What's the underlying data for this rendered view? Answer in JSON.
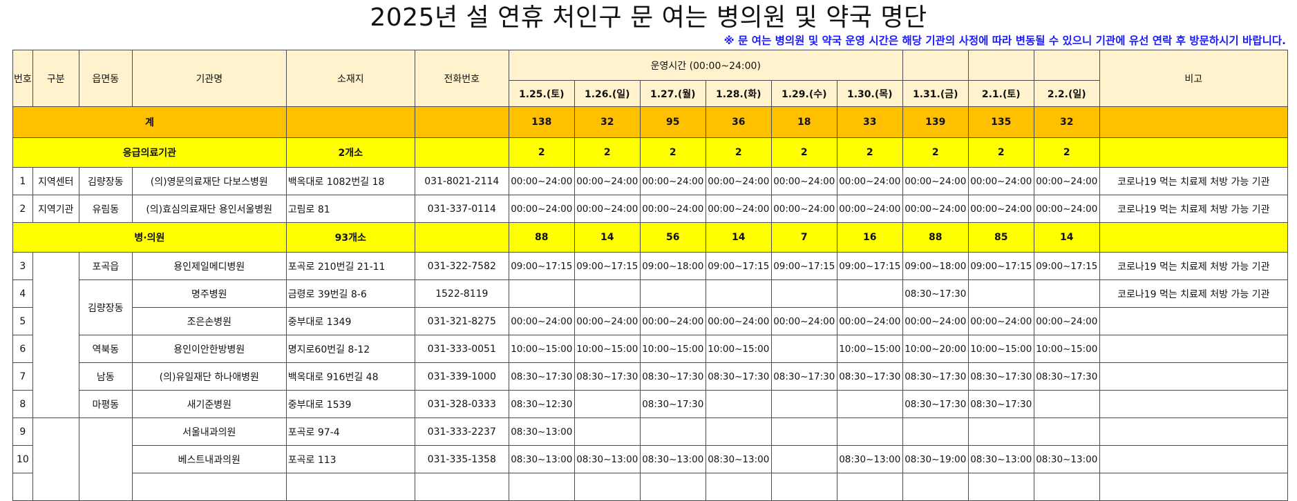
{
  "title": "2025년 설 연휴 처인구 문 여는 병의원 및 약국 명단",
  "notice": "※ 문 여는 병의원 및 약국 운영 시간은 해당 기관의 사정에 따라 변동될 수 있으니 기관에 유선 연락 후 방문하시기 바랍니다.",
  "header": {
    "no": "번호",
    "type": "구분",
    "district": "읍면동",
    "name": "기관명",
    "address": "소재지",
    "phone": "전화번호",
    "hours_group": "운영시간 (00:00~24:00)",
    "dates": [
      "1.25.(토)",
      "1.26.(일)",
      "1.27.(월)",
      "1.28.(화)",
      "1.29.(수)",
      "1.30.(목)",
      "1.31.(금)",
      "2.1.(토)",
      "2.2.(일)"
    ],
    "note": "비고"
  },
  "total": {
    "label": "계",
    "counts": [
      "138",
      "32",
      "95",
      "36",
      "18",
      "33",
      "139",
      "135",
      "32"
    ]
  },
  "emergency": {
    "label": "응급의료기관",
    "count": "2개소",
    "counts": [
      "2",
      "2",
      "2",
      "2",
      "2",
      "2",
      "2",
      "2",
      "2"
    ],
    "rows": [
      {
        "no": "1",
        "type": "지역센터",
        "district": "김량장동",
        "name": "(의)영문의료재단 다보스병원",
        "address": "백옥대로 1082번길 18",
        "phone": "031-8021-2114",
        "hours": [
          "00:00~24:00",
          "00:00~24:00",
          "00:00~24:00",
          "00:00~24:00",
          "00:00~24:00",
          "00:00~24:00",
          "00:00~24:00",
          "00:00~24:00",
          "00:00~24:00"
        ],
        "note": "코로나19 먹는 치료제 처방 가능 기관"
      },
      {
        "no": "2",
        "type": "지역기관",
        "district": "유림동",
        "name": "(의)효심의료재단 용인서울병원",
        "address": "고림로 81",
        "phone": "031-337-0114",
        "hours": [
          "00:00~24:00",
          "00:00~24:00",
          "00:00~24:00",
          "00:00~24:00",
          "00:00~24:00",
          "00:00~24:00",
          "00:00~24:00",
          "00:00~24:00",
          "00:00~24:00"
        ],
        "note": "코로나19 먹는 치료제 처방 가능 기관"
      }
    ]
  },
  "clinics": {
    "label": "병·의원",
    "count": "93개소",
    "counts": [
      "88",
      "14",
      "56",
      "14",
      "7",
      "16",
      "88",
      "85",
      "14"
    ],
    "districts": {
      "pogok": "포곡읍",
      "gimnyangjang": "김량장동",
      "yeokbuk": "역북동",
      "nam": "남동",
      "mapyeong": "마평동"
    },
    "rows": [
      {
        "no": "3",
        "name": "용인제일메디병원",
        "address": "포곡로 210번길 21-11",
        "phone": "031-322-7582",
        "hours": [
          "09:00~17:15",
          "09:00~17:15",
          "09:00~18:00",
          "09:00~17:15",
          "09:00~17:15",
          "09:00~17:15",
          "09:00~18:00",
          "09:00~17:15",
          "09:00~17:15"
        ],
        "note": "코로나19 먹는 치료제 처방 가능 기관"
      },
      {
        "no": "4",
        "name": "명주병원",
        "address": "금령로 39번길 8-6",
        "phone": "1522-8119",
        "hours": [
          "",
          "",
          "",
          "",
          "",
          "",
          "08:30~17:30",
          "",
          ""
        ],
        "note": "코로나19 먹는 치료제 처방 가능 기관"
      },
      {
        "no": "5",
        "name": "조은손병원",
        "address": "중부대로 1349",
        "phone": "031-321-8275",
        "hours": [
          "00:00~24:00",
          "00:00~24:00",
          "00:00~24:00",
          "00:00~24:00",
          "00:00~24:00",
          "00:00~24:00",
          "00:00~24:00",
          "00:00~24:00",
          "00:00~24:00"
        ],
        "note": ""
      },
      {
        "no": "6",
        "name": "용인이안한방병원",
        "address": "명지로60번길 8-12",
        "phone": "031-333-0051",
        "hours": [
          "10:00~15:00",
          "10:00~15:00",
          "10:00~15:00",
          "10:00~15:00",
          "",
          "10:00~15:00",
          "10:00~20:00",
          "10:00~15:00",
          "10:00~15:00"
        ],
        "note": ""
      },
      {
        "no": "7",
        "name": "(의)유일재단 하나애병원",
        "address": "백옥대로 916번길 48",
        "phone": "031-339-1000",
        "hours": [
          "08:30~17:30",
          "08:30~17:30",
          "08:30~17:30",
          "08:30~17:30",
          "08:30~17:30",
          "08:30~17:30",
          "08:30~17:30",
          "08:30~17:30",
          "08:30~17:30"
        ],
        "note": ""
      },
      {
        "no": "8",
        "name": "새기준병원",
        "address": "중부대로 1539",
        "phone": "031-328-0333",
        "hours": [
          "08:30~12:30",
          "",
          "08:30~17:30",
          "",
          "",
          "",
          "08:30~17:30",
          "08:30~17:30",
          ""
        ],
        "note": ""
      },
      {
        "no": "9",
        "name": "서울내과의원",
        "address": "포곡로 97-4",
        "phone": "031-333-2237",
        "hours": [
          "08:30~13:00",
          "",
          "",
          "",
          "",
          "",
          "",
          "",
          ""
        ],
        "note": ""
      },
      {
        "no": "10",
        "name": "베스트내과의원",
        "address": "포곡로 113",
        "phone": "031-335-1358",
        "hours": [
          "08:30~13:00",
          "08:30~13:00",
          "08:30~13:00",
          "08:30~13:00",
          "",
          "08:30~13:00",
          "08:30~19:00",
          "08:30~13:00",
          "08:30~13:00"
        ],
        "note": ""
      }
    ]
  }
}
